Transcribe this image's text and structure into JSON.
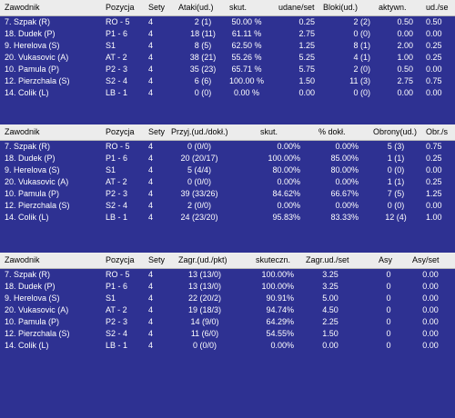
{
  "colors": {
    "panel_bg": "#2e3192",
    "header_bg": "#ececec",
    "text": "#ffffff"
  },
  "tables": [
    {
      "headers": [
        "Zawodnik",
        "Pozycja",
        "Sety",
        "Ataki(ud.)",
        "skut.",
        "udane/set",
        "Bloki(ud.)",
        "aktywn.",
        "ud./se"
      ],
      "rows": [
        [
          "7. Szpak (R)",
          "RO - 5",
          "4",
          "2 (1)",
          "50.00 %",
          "0.25",
          "2 (2)",
          "0.50",
          "0.50"
        ],
        [
          "18. Dudek (P)",
          "P1 - 6",
          "4",
          "18 (11)",
          "61.11 %",
          "2.75",
          "0 (0)",
          "0.00",
          "0.00"
        ],
        [
          "9. Herelova (S)",
          "S1",
          "4",
          "8 (5)",
          "62.50 %",
          "1.25",
          "8 (1)",
          "2.00",
          "0.25"
        ],
        [
          "20. Vukasovic (A)",
          "AT - 2",
          "4",
          "38 (21)",
          "55.26 %",
          "5.25",
          "4 (1)",
          "1.00",
          "0.25"
        ],
        [
          "10. Pamula (P)",
          "P2 - 3",
          "4",
          "35 (23)",
          "65.71 %",
          "5.75",
          "2 (0)",
          "0.50",
          "0.00"
        ],
        [
          "12. Pierzchala (S)",
          "S2 - 4",
          "4",
          "6 (6)",
          "100.00 %",
          "1.50",
          "11 (3)",
          "2.75",
          "0.75"
        ],
        [
          "14. Colik (L)",
          "LB - 1",
          "4",
          "0 (0)",
          "0.00 %",
          "0.00",
          "0 (0)",
          "0.00",
          "0.00"
        ]
      ]
    },
    {
      "headers": [
        "Zawodnik",
        "Pozycja",
        "Sety",
        "Przyj.(ud./dokł.)",
        "skut.",
        "% dokł.",
        "Obrony(ud.)",
        "Obr./s"
      ],
      "rows": [
        [
          "7. Szpak (R)",
          "RO - 5",
          "4",
          "0 (0/0)",
          "0.00%",
          "0.00%",
          "5 (3)",
          "0.75"
        ],
        [
          "18. Dudek (P)",
          "P1 - 6",
          "4",
          "20 (20/17)",
          "100.00%",
          "85.00%",
          "1 (1)",
          "0.25"
        ],
        [
          "9. Herelova (S)",
          "S1",
          "4",
          "5 (4/4)",
          "80.00%",
          "80.00%",
          "0 (0)",
          "0.00"
        ],
        [
          "20. Vukasovic (A)",
          "AT - 2",
          "4",
          "0 (0/0)",
          "0.00%",
          "0.00%",
          "1 (1)",
          "0.25"
        ],
        [
          "10. Pamula (P)",
          "P2 - 3",
          "4",
          "39 (33/26)",
          "84.62%",
          "66.67%",
          "7 (5)",
          "1.25"
        ],
        [
          "12. Pierzchala (S)",
          "S2 - 4",
          "4",
          "2 (0/0)",
          "0.00%",
          "0.00%",
          "0 (0)",
          "0.00"
        ],
        [
          "14. Colik (L)",
          "LB - 1",
          "4",
          "24 (23/20)",
          "95.83%",
          "83.33%",
          "12 (4)",
          "1.00"
        ]
      ]
    },
    {
      "headers": [
        "Zawodnik",
        "Pozycja",
        "Sety",
        "Zagr.(ud./pkt)",
        "skuteczn.",
        "Zagr.ud./set",
        "Asy",
        "Asy/set"
      ],
      "rows": [
        [
          "7. Szpak (R)",
          "RO - 5",
          "4",
          "13 (13/0)",
          "100.00%",
          "3.25",
          "0",
          "0.00"
        ],
        [
          "18. Dudek (P)",
          "P1 - 6",
          "4",
          "13 (13/0)",
          "100.00%",
          "3.25",
          "0",
          "0.00"
        ],
        [
          "9. Herelova (S)",
          "S1",
          "4",
          "22 (20/2)",
          "90.91%",
          "5.00",
          "0",
          "0.00"
        ],
        [
          "20. Vukasovic (A)",
          "AT - 2",
          "4",
          "19 (18/3)",
          "94.74%",
          "4.50",
          "0",
          "0.00"
        ],
        [
          "10. Pamula (P)",
          "P2 - 3",
          "4",
          "14 (9/0)",
          "64.29%",
          "2.25",
          "0",
          "0.00"
        ],
        [
          "12. Pierzchala (S)",
          "S2 - 4",
          "4",
          "11 (6/0)",
          "54.55%",
          "1.50",
          "0",
          "0.00"
        ],
        [
          "14. Colik (L)",
          "LB - 1",
          "4",
          "0 (0/0)",
          "0.00%",
          "0.00",
          "0",
          "0.00"
        ]
      ]
    }
  ]
}
